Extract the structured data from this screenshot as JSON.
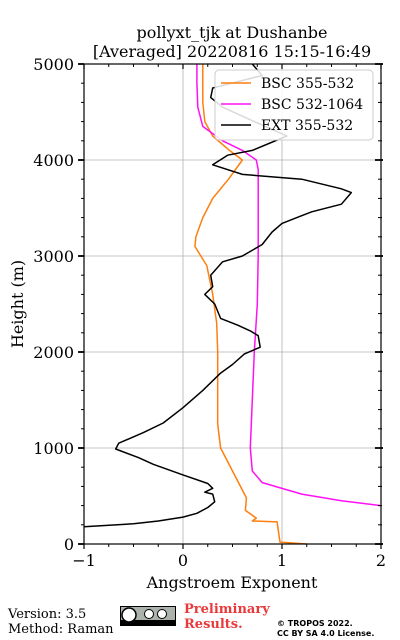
{
  "chart_data": {
    "type": "line",
    "title": "pollyxt_tjk at Dushanbe",
    "subtitle": "[Averaged] 20220816 15:15-16:49",
    "xlabel": "Angstroem Exponent",
    "ylabel": "Height (m)",
    "xlim": [
      -1,
      2
    ],
    "ylim": [
      0,
      5000
    ],
    "xticks": [
      -1,
      0,
      1,
      2
    ],
    "xtick_labels": [
      "−1",
      "0",
      "1",
      "2"
    ],
    "yticks": [
      0,
      1000,
      2000,
      3000,
      4000,
      5000
    ],
    "ytick_labels": [
      "0",
      "1000",
      "2000",
      "3000",
      "4000",
      "5000"
    ],
    "grid": true,
    "legend_position": "top-right",
    "series": [
      {
        "name": "BSC 355-532",
        "color": "#ff7f0e",
        "points": [
          [
            1.25,
            0
          ],
          [
            0.98,
            20
          ],
          [
            0.95,
            230
          ],
          [
            0.7,
            240
          ],
          [
            0.74,
            270
          ],
          [
            0.63,
            350
          ],
          [
            0.64,
            480
          ],
          [
            0.5,
            760
          ],
          [
            0.38,
            1000
          ],
          [
            0.35,
            1250
          ],
          [
            0.35,
            2000
          ],
          [
            0.34,
            2300
          ],
          [
            0.3,
            2600
          ],
          [
            0.24,
            2900
          ],
          [
            0.12,
            3100
          ],
          [
            0.13,
            3200
          ],
          [
            0.2,
            3400
          ],
          [
            0.3,
            3600
          ],
          [
            0.46,
            3800
          ],
          [
            0.6,
            4000
          ],
          [
            0.47,
            4100
          ],
          [
            0.3,
            4250
          ],
          [
            0.22,
            4400
          ],
          [
            0.2,
            4600
          ],
          [
            0.2,
            4800
          ],
          [
            0.2,
            5000
          ]
        ]
      },
      {
        "name": "BSC 532-1064",
        "color": "#ff11f4",
        "points": [
          [
            2.0,
            400
          ],
          [
            1.6,
            450
          ],
          [
            1.2,
            520
          ],
          [
            0.8,
            640
          ],
          [
            0.7,
            760
          ],
          [
            0.68,
            1000
          ],
          [
            0.7,
            1500
          ],
          [
            0.72,
            2000
          ],
          [
            0.75,
            2500
          ],
          [
            0.76,
            3000
          ],
          [
            0.76,
            3500
          ],
          [
            0.76,
            3900
          ],
          [
            0.74,
            4000
          ],
          [
            0.6,
            4100
          ],
          [
            0.4,
            4200
          ],
          [
            0.2,
            4350
          ],
          [
            0.15,
            4550
          ],
          [
            0.14,
            4800
          ],
          [
            0.14,
            5000
          ]
        ]
      },
      {
        "name": "EXT 355-532",
        "color": "#000000",
        "points": [
          [
            -1.0,
            180
          ],
          [
            -0.5,
            210
          ],
          [
            -0.25,
            240
          ],
          [
            0.0,
            280
          ],
          [
            0.14,
            320
          ],
          [
            0.25,
            380
          ],
          [
            0.32,
            440
          ],
          [
            0.3,
            520
          ],
          [
            0.22,
            540
          ],
          [
            0.3,
            580
          ],
          [
            0.25,
            630
          ],
          [
            0.0,
            720
          ],
          [
            -0.3,
            830
          ],
          [
            -0.45,
            900
          ],
          [
            -0.68,
            990
          ],
          [
            -0.65,
            1050
          ],
          [
            -0.4,
            1160
          ],
          [
            -0.2,
            1260
          ],
          [
            0.0,
            1420
          ],
          [
            0.2,
            1600
          ],
          [
            0.38,
            1780
          ],
          [
            0.5,
            1870
          ],
          [
            0.62,
            1980
          ],
          [
            0.78,
            2050
          ],
          [
            0.76,
            2170
          ],
          [
            0.68,
            2220
          ],
          [
            0.55,
            2280
          ],
          [
            0.38,
            2350
          ],
          [
            0.32,
            2500
          ],
          [
            0.22,
            2600
          ],
          [
            0.3,
            2680
          ],
          [
            0.28,
            2800
          ],
          [
            0.4,
            2940
          ],
          [
            0.6,
            3000
          ],
          [
            0.8,
            3120
          ],
          [
            0.9,
            3250
          ],
          [
            1.0,
            3340
          ],
          [
            1.15,
            3400
          ],
          [
            1.3,
            3460
          ],
          [
            1.6,
            3540
          ],
          [
            1.7,
            3660
          ],
          [
            1.6,
            3700
          ],
          [
            1.2,
            3800
          ],
          [
            0.6,
            3850
          ],
          [
            0.3,
            3950
          ],
          [
            0.45,
            4050
          ],
          [
            0.7,
            4100
          ],
          [
            1.05,
            4250
          ],
          [
            0.72,
            4400
          ],
          [
            0.4,
            4550
          ],
          [
            0.28,
            4650
          ],
          [
            0.3,
            4750
          ],
          [
            0.8,
            4880
          ],
          [
            0.7,
            5000
          ]
        ]
      }
    ]
  },
  "footer": {
    "version": "Version: 3.5",
    "method": "Method: Raman",
    "preliminary_line1": "Preliminary",
    "preliminary_line2": "Results.",
    "copyright_line1": "© TROPOS 2022.",
    "copyright_line2": "CC BY SA 4.0 License.",
    "license_badge": "cc-by-sa-badge"
  }
}
